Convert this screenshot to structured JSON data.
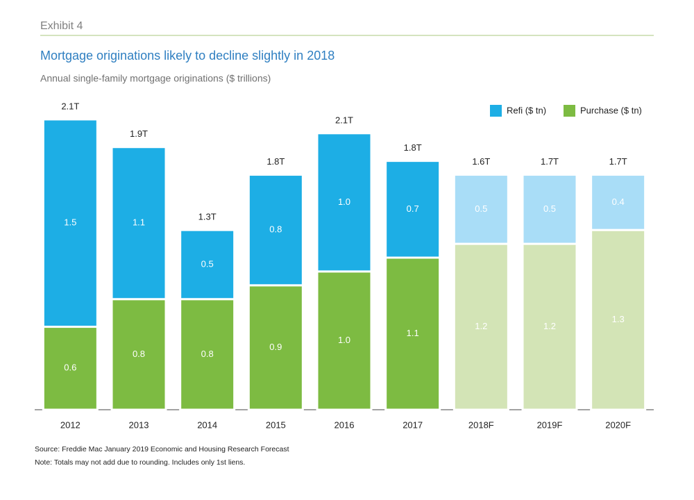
{
  "header": {
    "exhibit": "Exhibit 4"
  },
  "chart_data": {
    "type": "stacked_bar",
    "title": "Mortgage originations likely to decline slightly in 2018",
    "subtitle": "Annual single-family mortgage originations ($ trillions)",
    "categories": [
      "2012",
      "2013",
      "2014",
      "2015",
      "2016",
      "2017",
      "2018F",
      "2019F",
      "2020F"
    ],
    "series": [
      {
        "name": "Refi ($ tn)",
        "color": "#1daee5",
        "colors": [
          "#1daee5",
          "#1daee5",
          "#1daee5",
          "#1daee5",
          "#1daee5",
          "#1daee5",
          "#a9ddf7",
          "#a9ddf7",
          "#a9ddf7"
        ],
        "values": [
          1.5,
          1.1,
          0.5,
          0.8,
          1,
          0.7,
          0.5,
          0.5,
          0.4
        ],
        "value_labels": [
          "1.5",
          "1.1",
          "0.5",
          "0.8",
          "1.0",
          "0.7",
          "0.5",
          "0.5",
          "0.4"
        ]
      },
      {
        "name": "Purchase ($ tn)",
        "color": "#7dbb42",
        "colors": [
          "#7dbb42",
          "#7dbb42",
          "#7dbb42",
          "#7dbb42",
          "#7dbb42",
          "#7dbb42",
          "#d3e4b6",
          "#d3e4b6",
          "#d3e4b6"
        ],
        "values": [
          0.6,
          0.8,
          0.8,
          0.9,
          1,
          1.1,
          1.2,
          1.2,
          1.3
        ],
        "value_labels": [
          "0.6",
          "0.8",
          "0.8",
          "0.9",
          "1.0",
          "1.1",
          "1.2",
          "1.2",
          "1.3"
        ]
      }
    ],
    "totals": {
      "values": [
        2.1,
        1.9,
        1.3,
        1.8,
        2.1,
        1.8,
        1.6,
        1.7,
        1.7
      ],
      "value_labels": [
        "2.1T",
        "1.9T",
        "1.3T",
        "1.8T",
        "2.1T",
        "1.8T",
        "1.6T",
        "1.7T",
        "1.7T"
      ]
    },
    "ylim": [
      0,
      2.2
    ],
    "legend": "top-right"
  },
  "footer": {
    "source": "Source: Freddie Mac January 2019 Economic and Housing Research Forecast",
    "note": "Note: Totals may not add due to rounding. Includes only 1st liens."
  }
}
